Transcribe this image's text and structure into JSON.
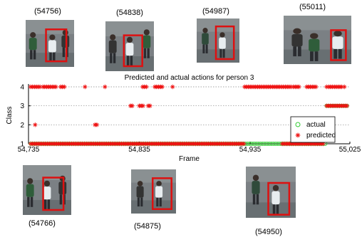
{
  "frames": [
    {
      "label": "(54756)"
    },
    {
      "label": "(54838)"
    },
    {
      "label": "(54987)"
    },
    {
      "label": "(55011)"
    },
    {
      "label": "(54766)"
    },
    {
      "label": "(54875)"
    },
    {
      "label": "(54950)"
    }
  ],
  "colors": {
    "actual": "#33cc33",
    "predicted": "#ee1111",
    "box": "#dd1111"
  },
  "chart_data": {
    "type": "scatter",
    "title": "Predicted and actual actions for person 3",
    "xlabel": "Frame",
    "ylabel": "Class",
    "xlim": [
      54735,
      55025
    ],
    "ylim": [
      1,
      4
    ],
    "xticks": [
      "54,735",
      "54,835",
      "54,935",
      "55,025"
    ],
    "xtick_values": [
      54735,
      54835,
      54935,
      55025
    ],
    "yticks": [
      "1",
      "2",
      "3",
      "4"
    ],
    "grid": true,
    "legend": {
      "position": "bottom-right",
      "entries": [
        "actual",
        "predicted"
      ]
    },
    "series": [
      {
        "name": "actual",
        "marker": "circle",
        "segments": [
          {
            "y": 1,
            "x_start": 54737,
            "x_end": 55004
          },
          {
            "y": 3,
            "x_start": 55004,
            "x_end": 55023
          }
        ]
      },
      {
        "name": "predicted",
        "marker": "star",
        "segments": [
          {
            "y": 4,
            "x_start": 54737,
            "x_end": 54746
          },
          {
            "y": 4,
            "x_start": 54748,
            "x_end": 54760
          },
          {
            "y": 4,
            "x_start": 54764,
            "x_end": 54768
          },
          {
            "y": 4,
            "x_start": 54838,
            "x_end": 54843
          },
          {
            "y": 4,
            "x_start": 54849,
            "x_end": 54857
          },
          {
            "y": 4,
            "x_start": 54930,
            "x_end": 54972
          },
          {
            "y": 4,
            "x_start": 54974,
            "x_end": 54980
          },
          {
            "y": 4,
            "x_start": 54986,
            "x_end": 54995
          },
          {
            "y": 4,
            "x_start": 55006,
            "x_end": 55018
          },
          {
            "y": 3,
            "x_start": 54827,
            "x_end": 54829
          },
          {
            "y": 3,
            "x_start": 54835,
            "x_end": 54840
          },
          {
            "y": 3,
            "x_start": 54843,
            "x_end": 54845
          },
          {
            "y": 3,
            "x_start": 55004,
            "x_end": 55023
          },
          {
            "y": 2,
            "x_start": 54795,
            "x_end": 54798
          },
          {
            "y": 2,
            "x_start": 54980,
            "x_end": 54988
          },
          {
            "y": 1,
            "x_start": 54737,
            "x_end": 54930
          },
          {
            "y": 1,
            "x_start": 54964,
            "x_end": 55002
          }
        ],
        "points": [
          {
            "x": 54741,
            "y": 2
          },
          {
            "x": 54786,
            "y": 4
          },
          {
            "x": 54804,
            "y": 4
          },
          {
            "x": 54865,
            "y": 4
          },
          {
            "x": 55004,
            "y": 4
          },
          {
            "x": 55020,
            "y": 4
          }
        ]
      }
    ]
  }
}
